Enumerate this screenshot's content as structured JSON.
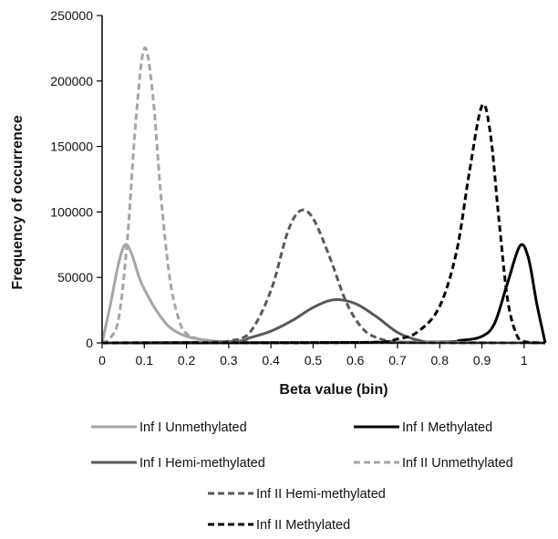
{
  "chart_data": {
    "type": "line",
    "title": "",
    "xlabel": "Beta value (bin)",
    "ylabel": "Frequency of occurrence",
    "xlim": [
      0,
      1.05
    ],
    "ylim": [
      0,
      250000
    ],
    "x_ticks": [
      0,
      0.1,
      0.2,
      0.3,
      0.4,
      0.5,
      0.6,
      0.7,
      0.8,
      0.9,
      1
    ],
    "x_tick_labels": [
      "0",
      "0.1",
      "0.2",
      "0.3",
      "0.4",
      "0.5",
      "0.6",
      "0.7",
      "0.8",
      "0.9",
      "1"
    ],
    "y_ticks": [
      0,
      50000,
      100000,
      150000,
      200000,
      250000
    ],
    "y_tick_labels": [
      "0",
      "50000",
      "100000",
      "150000",
      "200000",
      "250000"
    ],
    "grid": false,
    "legend_position": "bottom",
    "series": [
      {
        "name": "Inf I Unmethylated",
        "color": "#a6a6a6",
        "dash": "solid",
        "points": [
          [
            0,
            0
          ],
          [
            0.02,
            30000
          ],
          [
            0.04,
            62000
          ],
          [
            0.055,
            75000
          ],
          [
            0.07,
            68000
          ],
          [
            0.09,
            48000
          ],
          [
            0.11,
            35000
          ],
          [
            0.13,
            24000
          ],
          [
            0.16,
            12000
          ],
          [
            0.2,
            5000
          ],
          [
            0.25,
            2000
          ],
          [
            0.3,
            600
          ],
          [
            0.4,
            100
          ],
          [
            1.05,
            0
          ]
        ]
      },
      {
        "name": "Inf I Methylated",
        "color": "#000000",
        "dash": "solid",
        "points": [
          [
            0,
            0
          ],
          [
            0.75,
            500
          ],
          [
            0.85,
            2000
          ],
          [
            0.9,
            5000
          ],
          [
            0.93,
            15000
          ],
          [
            0.96,
            45000
          ],
          [
            0.99,
            74000
          ],
          [
            1.01,
            65000
          ],
          [
            1.03,
            30000
          ],
          [
            1.05,
            0
          ]
        ]
      },
      {
        "name": "Inf I Hemi-methylated",
        "color": "#595959",
        "dash": "solid",
        "points": [
          [
            0,
            0
          ],
          [
            0.3,
            1000
          ],
          [
            0.35,
            4000
          ],
          [
            0.4,
            9000
          ],
          [
            0.45,
            17000
          ],
          [
            0.5,
            27000
          ],
          [
            0.55,
            33000
          ],
          [
            0.6,
            30000
          ],
          [
            0.65,
            20000
          ],
          [
            0.7,
            8000
          ],
          [
            0.75,
            2000
          ],
          [
            0.8,
            500
          ],
          [
            1.05,
            0
          ]
        ]
      },
      {
        "name": "Inf II Unmethylated",
        "color": "#a6a6a6",
        "dash": "dashed",
        "points": [
          [
            0,
            0
          ],
          [
            0.02,
            4000
          ],
          [
            0.04,
            20000
          ],
          [
            0.06,
            80000
          ],
          [
            0.08,
            170000
          ],
          [
            0.1,
            225000
          ],
          [
            0.12,
            190000
          ],
          [
            0.14,
            110000
          ],
          [
            0.16,
            50000
          ],
          [
            0.18,
            20000
          ],
          [
            0.2,
            7000
          ],
          [
            0.25,
            1500
          ],
          [
            0.3,
            300
          ],
          [
            1.05,
            0
          ]
        ]
      },
      {
        "name": "Inf II Hemi-methylated",
        "color": "#595959",
        "dash": "dashed",
        "points": [
          [
            0,
            0
          ],
          [
            0.25,
            300
          ],
          [
            0.3,
            1500
          ],
          [
            0.35,
            8000
          ],
          [
            0.4,
            40000
          ],
          [
            0.44,
            85000
          ],
          [
            0.47,
            101000
          ],
          [
            0.5,
            95000
          ],
          [
            0.54,
            65000
          ],
          [
            0.58,
            30000
          ],
          [
            0.62,
            10000
          ],
          [
            0.66,
            3000
          ],
          [
            0.7,
            800
          ],
          [
            0.8,
            100
          ],
          [
            1.05,
            0
          ]
        ]
      },
      {
        "name": "Inf II Methylated",
        "color": "#000000",
        "dash": "dashed",
        "points": [
          [
            0,
            0
          ],
          [
            0.6,
            300
          ],
          [
            0.7,
            3000
          ],
          [
            0.75,
            9000
          ],
          [
            0.8,
            28000
          ],
          [
            0.84,
            70000
          ],
          [
            0.87,
            130000
          ],
          [
            0.9,
            181000
          ],
          [
            0.92,
            160000
          ],
          [
            0.94,
            95000
          ],
          [
            0.96,
            35000
          ],
          [
            0.98,
            8000
          ],
          [
            1,
            1000
          ],
          [
            1.05,
            0
          ]
        ]
      }
    ]
  }
}
